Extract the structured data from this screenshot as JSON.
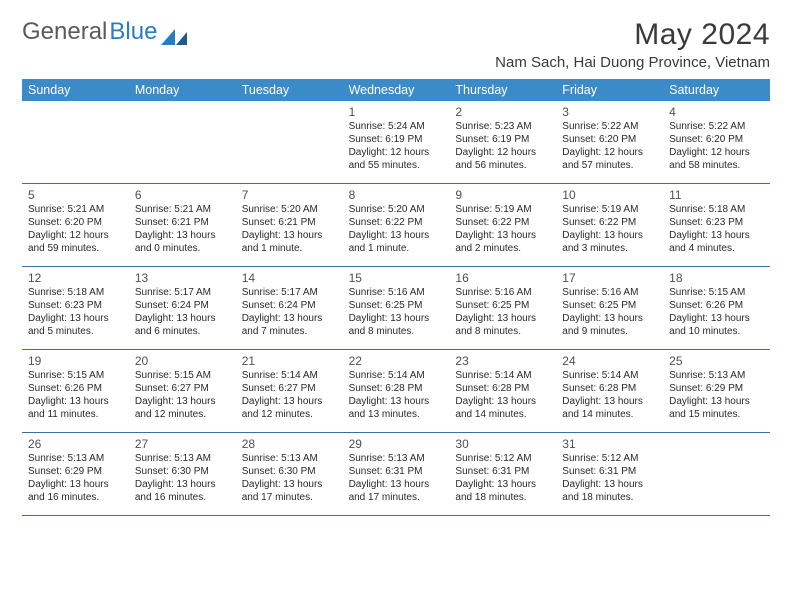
{
  "logo": {
    "word1": "General",
    "word2": "Blue"
  },
  "title": "May 2024",
  "subtitle": "Nam Sach, Hai Duong Province, Vietnam",
  "colors": {
    "header_bg": "#3b8bc9",
    "header_text": "#ffffff",
    "row_border": "#3b6fa0",
    "title_color": "#3a3a3a",
    "logo_gray": "#5a5a5a",
    "logo_blue": "#2b7bbf",
    "daynum_color": "#505050",
    "text_color": "#2a2a2a",
    "background": "#ffffff"
  },
  "typography": {
    "title_fontsize": 30,
    "subtitle_fontsize": 15,
    "header_fontsize": 12.5,
    "daynum_fontsize": 12,
    "cell_fontsize": 10
  },
  "weekdays": [
    "Sunday",
    "Monday",
    "Tuesday",
    "Wednesday",
    "Thursday",
    "Friday",
    "Saturday"
  ],
  "weeks": [
    [
      null,
      null,
      null,
      {
        "n": "1",
        "sr": "5:24 AM",
        "ss": "6:19 PM",
        "dl1": "Daylight: 12 hours",
        "dl2": "and 55 minutes."
      },
      {
        "n": "2",
        "sr": "5:23 AM",
        "ss": "6:19 PM",
        "dl1": "Daylight: 12 hours",
        "dl2": "and 56 minutes."
      },
      {
        "n": "3",
        "sr": "5:22 AM",
        "ss": "6:20 PM",
        "dl1": "Daylight: 12 hours",
        "dl2": "and 57 minutes."
      },
      {
        "n": "4",
        "sr": "5:22 AM",
        "ss": "6:20 PM",
        "dl1": "Daylight: 12 hours",
        "dl2": "and 58 minutes."
      }
    ],
    [
      {
        "n": "5",
        "sr": "5:21 AM",
        "ss": "6:20 PM",
        "dl1": "Daylight: 12 hours",
        "dl2": "and 59 minutes."
      },
      {
        "n": "6",
        "sr": "5:21 AM",
        "ss": "6:21 PM",
        "dl1": "Daylight: 13 hours",
        "dl2": "and 0 minutes."
      },
      {
        "n": "7",
        "sr": "5:20 AM",
        "ss": "6:21 PM",
        "dl1": "Daylight: 13 hours",
        "dl2": "and 1 minute."
      },
      {
        "n": "8",
        "sr": "5:20 AM",
        "ss": "6:22 PM",
        "dl1": "Daylight: 13 hours",
        "dl2": "and 1 minute."
      },
      {
        "n": "9",
        "sr": "5:19 AM",
        "ss": "6:22 PM",
        "dl1": "Daylight: 13 hours",
        "dl2": "and 2 minutes."
      },
      {
        "n": "10",
        "sr": "5:19 AM",
        "ss": "6:22 PM",
        "dl1": "Daylight: 13 hours",
        "dl2": "and 3 minutes."
      },
      {
        "n": "11",
        "sr": "5:18 AM",
        "ss": "6:23 PM",
        "dl1": "Daylight: 13 hours",
        "dl2": "and 4 minutes."
      }
    ],
    [
      {
        "n": "12",
        "sr": "5:18 AM",
        "ss": "6:23 PM",
        "dl1": "Daylight: 13 hours",
        "dl2": "and 5 minutes."
      },
      {
        "n": "13",
        "sr": "5:17 AM",
        "ss": "6:24 PM",
        "dl1": "Daylight: 13 hours",
        "dl2": "and 6 minutes."
      },
      {
        "n": "14",
        "sr": "5:17 AM",
        "ss": "6:24 PM",
        "dl1": "Daylight: 13 hours",
        "dl2": "and 7 minutes."
      },
      {
        "n": "15",
        "sr": "5:16 AM",
        "ss": "6:25 PM",
        "dl1": "Daylight: 13 hours",
        "dl2": "and 8 minutes."
      },
      {
        "n": "16",
        "sr": "5:16 AM",
        "ss": "6:25 PM",
        "dl1": "Daylight: 13 hours",
        "dl2": "and 8 minutes."
      },
      {
        "n": "17",
        "sr": "5:16 AM",
        "ss": "6:25 PM",
        "dl1": "Daylight: 13 hours",
        "dl2": "and 9 minutes."
      },
      {
        "n": "18",
        "sr": "5:15 AM",
        "ss": "6:26 PM",
        "dl1": "Daylight: 13 hours",
        "dl2": "and 10 minutes."
      }
    ],
    [
      {
        "n": "19",
        "sr": "5:15 AM",
        "ss": "6:26 PM",
        "dl1": "Daylight: 13 hours",
        "dl2": "and 11 minutes."
      },
      {
        "n": "20",
        "sr": "5:15 AM",
        "ss": "6:27 PM",
        "dl1": "Daylight: 13 hours",
        "dl2": "and 12 minutes."
      },
      {
        "n": "21",
        "sr": "5:14 AM",
        "ss": "6:27 PM",
        "dl1": "Daylight: 13 hours",
        "dl2": "and 12 minutes."
      },
      {
        "n": "22",
        "sr": "5:14 AM",
        "ss": "6:28 PM",
        "dl1": "Daylight: 13 hours",
        "dl2": "and 13 minutes."
      },
      {
        "n": "23",
        "sr": "5:14 AM",
        "ss": "6:28 PM",
        "dl1": "Daylight: 13 hours",
        "dl2": "and 14 minutes."
      },
      {
        "n": "24",
        "sr": "5:14 AM",
        "ss": "6:28 PM",
        "dl1": "Daylight: 13 hours",
        "dl2": "and 14 minutes."
      },
      {
        "n": "25",
        "sr": "5:13 AM",
        "ss": "6:29 PM",
        "dl1": "Daylight: 13 hours",
        "dl2": "and 15 minutes."
      }
    ],
    [
      {
        "n": "26",
        "sr": "5:13 AM",
        "ss": "6:29 PM",
        "dl1": "Daylight: 13 hours",
        "dl2": "and 16 minutes."
      },
      {
        "n": "27",
        "sr": "5:13 AM",
        "ss": "6:30 PM",
        "dl1": "Daylight: 13 hours",
        "dl2": "and 16 minutes."
      },
      {
        "n": "28",
        "sr": "5:13 AM",
        "ss": "6:30 PM",
        "dl1": "Daylight: 13 hours",
        "dl2": "and 17 minutes."
      },
      {
        "n": "29",
        "sr": "5:13 AM",
        "ss": "6:31 PM",
        "dl1": "Daylight: 13 hours",
        "dl2": "and 17 minutes."
      },
      {
        "n": "30",
        "sr": "5:12 AM",
        "ss": "6:31 PM",
        "dl1": "Daylight: 13 hours",
        "dl2": "and 18 minutes."
      },
      {
        "n": "31",
        "sr": "5:12 AM",
        "ss": "6:31 PM",
        "dl1": "Daylight: 13 hours",
        "dl2": "and 18 minutes."
      },
      null
    ]
  ]
}
